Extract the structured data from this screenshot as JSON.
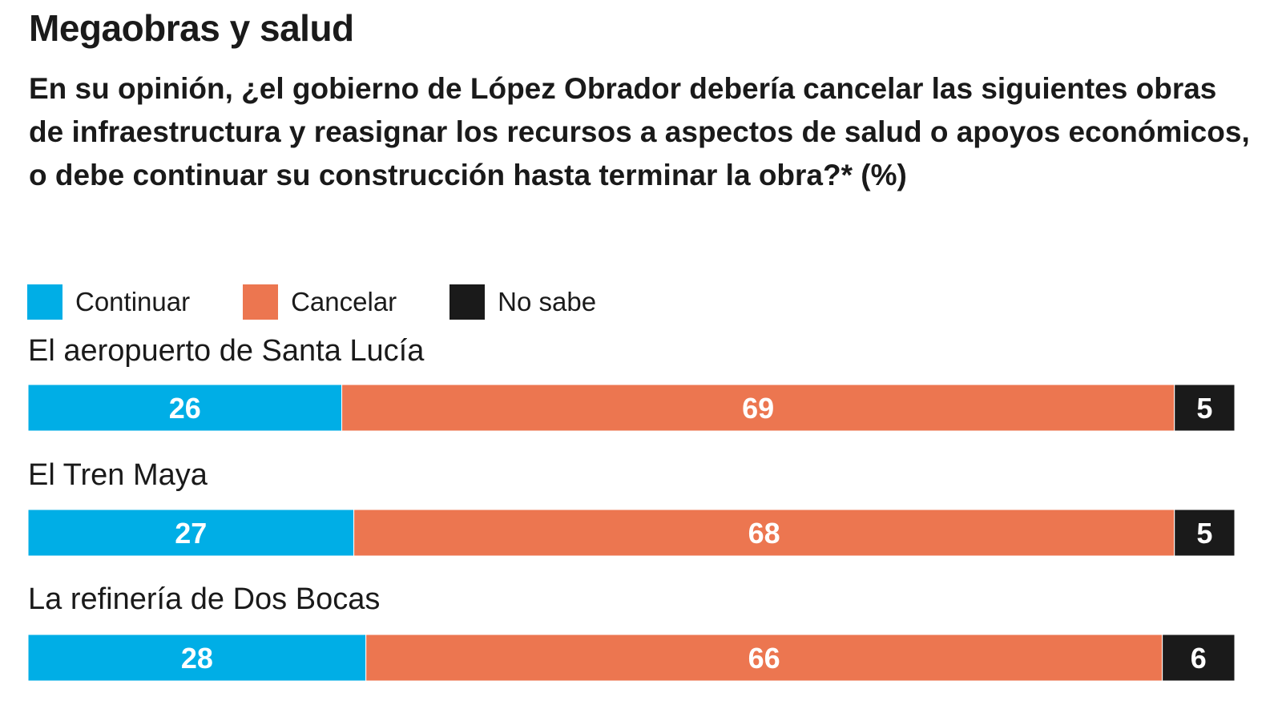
{
  "chart_data": {
    "type": "bar",
    "stacked": true,
    "orientation": "horizontal",
    "title": "Megaobras y salud",
    "subtitle": "En su opinión, ¿el gobierno de López Obrador debería cancelar las siguientes obras de infraestructura y reasignar los recursos a aspectos de salud o apoyos económicos, o debe continuar su construcción hasta terminar la obra?*  (%)",
    "categories": [
      "El aeropuerto de Santa Lucía",
      "El Tren Maya",
      "La refinería de Dos Bocas"
    ],
    "series": [
      {
        "name": "Continuar",
        "color": "#00aee6",
        "values": [
          26,
          27,
          28
        ]
      },
      {
        "name": "Cancelar",
        "color": "#ec7650",
        "values": [
          69,
          68,
          66
        ]
      },
      {
        "name": "No sabe",
        "color": "#1a1a1a",
        "values": [
          5,
          5,
          6
        ]
      }
    ],
    "xlim": [
      0,
      100
    ],
    "grid": false,
    "legend": "top-left",
    "data_labels": true
  }
}
